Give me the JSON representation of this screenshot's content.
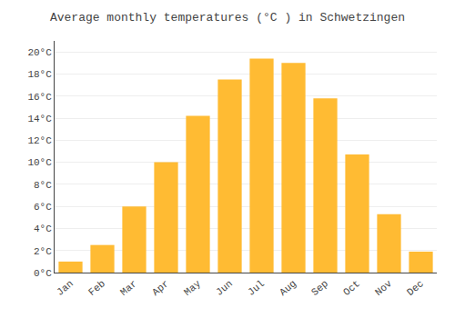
{
  "chart_data": {
    "type": "bar",
    "title": "Average monthly temperatures (°C ) in Schwetzingen",
    "categories": [
      "Jan",
      "Feb",
      "Mar",
      "Apr",
      "May",
      "Jun",
      "Jul",
      "Aug",
      "Sep",
      "Oct",
      "Nov",
      "Dec"
    ],
    "values": [
      1.0,
      2.5,
      6.0,
      10.0,
      14.2,
      17.5,
      19.4,
      19.0,
      15.8,
      10.7,
      5.3,
      1.9
    ],
    "color": "#FFBB33",
    "ylim": [
      0,
      21
    ],
    "yticks": [
      {
        "value": 0,
        "label": "0°C"
      },
      {
        "value": 2,
        "label": "2°C"
      },
      {
        "value": 4,
        "label": "4°C"
      },
      {
        "value": 6,
        "label": "6°C"
      },
      {
        "value": 8,
        "label": "8°C"
      },
      {
        "value": 10,
        "label": "10°C"
      },
      {
        "value": 12,
        "label": "12°C"
      },
      {
        "value": 14,
        "label": "14°C"
      },
      {
        "value": 16,
        "label": "16°C"
      },
      {
        "value": 18,
        "label": "18°C"
      },
      {
        "value": 20,
        "label": "20°C"
      }
    ],
    "grid": true
  }
}
